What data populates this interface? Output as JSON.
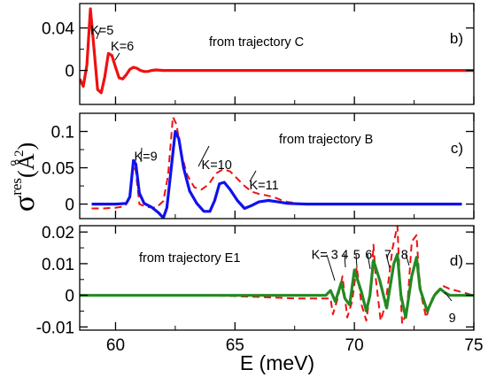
{
  "chart_data": {
    "type": "line",
    "xlabel": "E (meV)",
    "ylabel": {
      "symbol": "σ",
      "superscript": "res",
      "units": "(Å",
      "units_ring": "o",
      "units_exp": "2",
      "close": ")"
    },
    "xlim": [
      58.5,
      75
    ],
    "xticks": [
      "60",
      "65",
      "70",
      "75"
    ],
    "panels": [
      {
        "id": "b",
        "label": "b)",
        "source": "from trajectory C",
        "ylim": [
          -0.032,
          0.063
        ],
        "yticks": [
          "0",
          "0.04"
        ],
        "series": [
          {
            "style": "solid",
            "color": "#ee1111",
            "x": [
              58.5,
              58.65,
              58.8,
              58.95,
              59.1,
              59.25,
              59.4,
              59.55,
              59.7,
              59.85,
              60.0,
              60.15,
              60.3,
              60.45,
              60.6,
              60.75,
              60.9,
              61.05,
              61.2,
              61.35,
              61.5,
              61.7,
              62.0,
              62.5,
              63.0,
              75.0
            ],
            "y": [
              -0.008,
              -0.015,
              0.005,
              0.058,
              0.02,
              -0.018,
              -0.021,
              -0.006,
              0.016,
              0.014,
              0.003,
              -0.007,
              -0.008,
              -0.004,
              0.001,
              0.003,
              0.002,
              0.0,
              -0.001,
              -0.001,
              0.0,
              0.0005,
              0.0,
              0.0,
              0.0,
              0.0
            ]
          }
        ],
        "annotations": [
          {
            "text": "K=5",
            "x": 58.95,
            "y": 0.034
          },
          {
            "text": "K=6",
            "x": 59.8,
            "y": 0.019
          }
        ]
      },
      {
        "id": "c",
        "label": "c)",
        "source": "from trajectory B",
        "ylim": [
          -0.02,
          0.125
        ],
        "yticks": [
          "0",
          "0.05",
          "0.1"
        ],
        "series": [
          {
            "style": "dashed",
            "color": "#ee1111",
            "x": [
              59.0,
              59.5,
              60.0,
              60.4,
              60.6,
              60.75,
              60.85,
              61.0,
              61.3,
              61.7,
              62.0,
              62.2,
              62.4,
              62.55,
              62.75,
              63.0,
              63.3,
              63.6,
              63.9,
              64.2,
              64.5,
              64.8,
              65.1,
              65.4,
              65.7,
              66.0,
              66.3,
              66.6,
              66.9,
              67.2,
              67.6,
              68.0,
              69.0,
              70.0,
              71.0,
              72.0,
              73.0,
              74.5
            ],
            "y": [
              -0.006,
              -0.006,
              -0.005,
              -0.003,
              0.01,
              0.055,
              0.045,
              0.0,
              -0.004,
              -0.005,
              0.004,
              0.04,
              0.12,
              0.11,
              0.07,
              0.04,
              0.023,
              0.02,
              0.027,
              0.042,
              0.048,
              0.045,
              0.035,
              0.025,
              0.017,
              0.014,
              0.012,
              0.01,
              0.006,
              0.003,
              0.001,
              0.0,
              0.0,
              0.0,
              0.0,
              0.0,
              0.0,
              0.0
            ]
          },
          {
            "style": "solid",
            "color": "#1111ee",
            "x": [
              59.0,
              60.0,
              60.45,
              60.6,
              60.75,
              60.85,
              61.0,
              61.2,
              61.5,
              61.8,
              62.0,
              62.15,
              62.3,
              62.5,
              62.65,
              62.85,
              63.1,
              63.4,
              63.7,
              63.95,
              64.15,
              64.35,
              64.55,
              64.8,
              65.1,
              65.4,
              65.7,
              66.0,
              66.4,
              66.8,
              67.2,
              68.0,
              70.0,
              74.5
            ],
            "y": [
              0.0,
              0.0,
              0.001,
              0.01,
              0.06,
              0.055,
              0.015,
              0.001,
              -0.004,
              -0.012,
              -0.019,
              -0.005,
              0.04,
              0.1,
              0.09,
              0.05,
              0.018,
              0.001,
              -0.01,
              -0.01,
              0.005,
              0.028,
              0.03,
              0.02,
              0.005,
              -0.006,
              -0.002,
              0.003,
              0.005,
              0.003,
              0.001,
              0.0,
              0.0,
              0.0
            ]
          }
        ],
        "annotations": [
          {
            "text": "K=9",
            "x": 60.78,
            "y": 0.06
          },
          {
            "text": "K=10",
            "x": 63.6,
            "y": 0.048
          },
          {
            "text": "K=11",
            "x": 65.6,
            "y": 0.02
          }
        ]
      },
      {
        "id": "d",
        "label": "d)",
        "source": "from trajectory E1",
        "ylim": [
          -0.011,
          0.022
        ],
        "yticks": [
          "-0.01",
          "0",
          "0.01",
          "0.02"
        ],
        "series": [
          {
            "style": "dashed",
            "color": "#ee1111",
            "x": [
              58.5,
              64.0,
              66.0,
              67.5,
              68.5,
              69.0,
              69.1,
              69.3,
              69.5,
              69.7,
              69.9,
              70.1,
              70.3,
              70.5,
              70.7,
              70.8,
              70.9,
              71.1,
              71.3,
              71.6,
              71.8,
              71.9,
              72.0,
              72.2,
              72.4,
              72.6,
              72.7,
              72.8,
              73.0,
              73.3,
              73.7,
              74.0,
              74.5,
              75.0
            ],
            "y": [
              0.0,
              0.0,
              -0.0005,
              -0.001,
              -0.001,
              -0.001,
              -0.006,
              -0.001,
              0.006,
              -0.007,
              -0.002,
              0.009,
              -0.003,
              -0.008,
              0.003,
              0.016,
              0.005,
              -0.008,
              -0.003,
              0.015,
              0.022,
              0.005,
              -0.009,
              -0.005,
              0.017,
              0.019,
              0.007,
              0.0,
              -0.007,
              0.0,
              0.003,
              0.002,
              0.001,
              0.0
            ]
          },
          {
            "style": "solid",
            "color": "#228b22",
            "x": [
              58.5,
              68.5,
              68.8,
              69.0,
              69.2,
              69.45,
              69.6,
              69.8,
              70.0,
              70.3,
              70.5,
              70.65,
              70.8,
              71.05,
              71.35,
              71.65,
              71.8,
              71.95,
              72.15,
              72.4,
              72.6,
              72.75,
              73.05,
              73.35,
              73.6,
              73.8,
              74.0,
              74.5,
              75.0
            ],
            "y": [
              0.0,
              0.0,
              0.0,
              0.0015,
              -0.002,
              0.004,
              -0.001,
              -0.003,
              0.008,
              0.001,
              -0.005,
              0.0,
              0.011,
              0.005,
              -0.004,
              0.01,
              0.013,
              0.0,
              -0.007,
              0.006,
              0.012,
              0.002,
              -0.005,
              0.0,
              0.002,
              0.0008,
              0.0,
              0.0,
              0.0
            ]
          }
        ],
        "annotations": [
          {
            "text": "K= 3",
            "x": 68.2,
            "y": 0.0115
          },
          {
            "text": "4",
            "x": 69.45,
            "y": 0.0115
          },
          {
            "text": "5",
            "x": 69.95,
            "y": 0.0115
          },
          {
            "text": "6",
            "x": 70.45,
            "y": 0.0115
          },
          {
            "text": "7",
            "x": 71.25,
            "y": 0.0115
          },
          {
            "text": "8",
            "x": 71.95,
            "y": 0.0115
          },
          {
            "text": "9",
            "x": 73.95,
            "y": -0.0085
          }
        ]
      }
    ]
  }
}
